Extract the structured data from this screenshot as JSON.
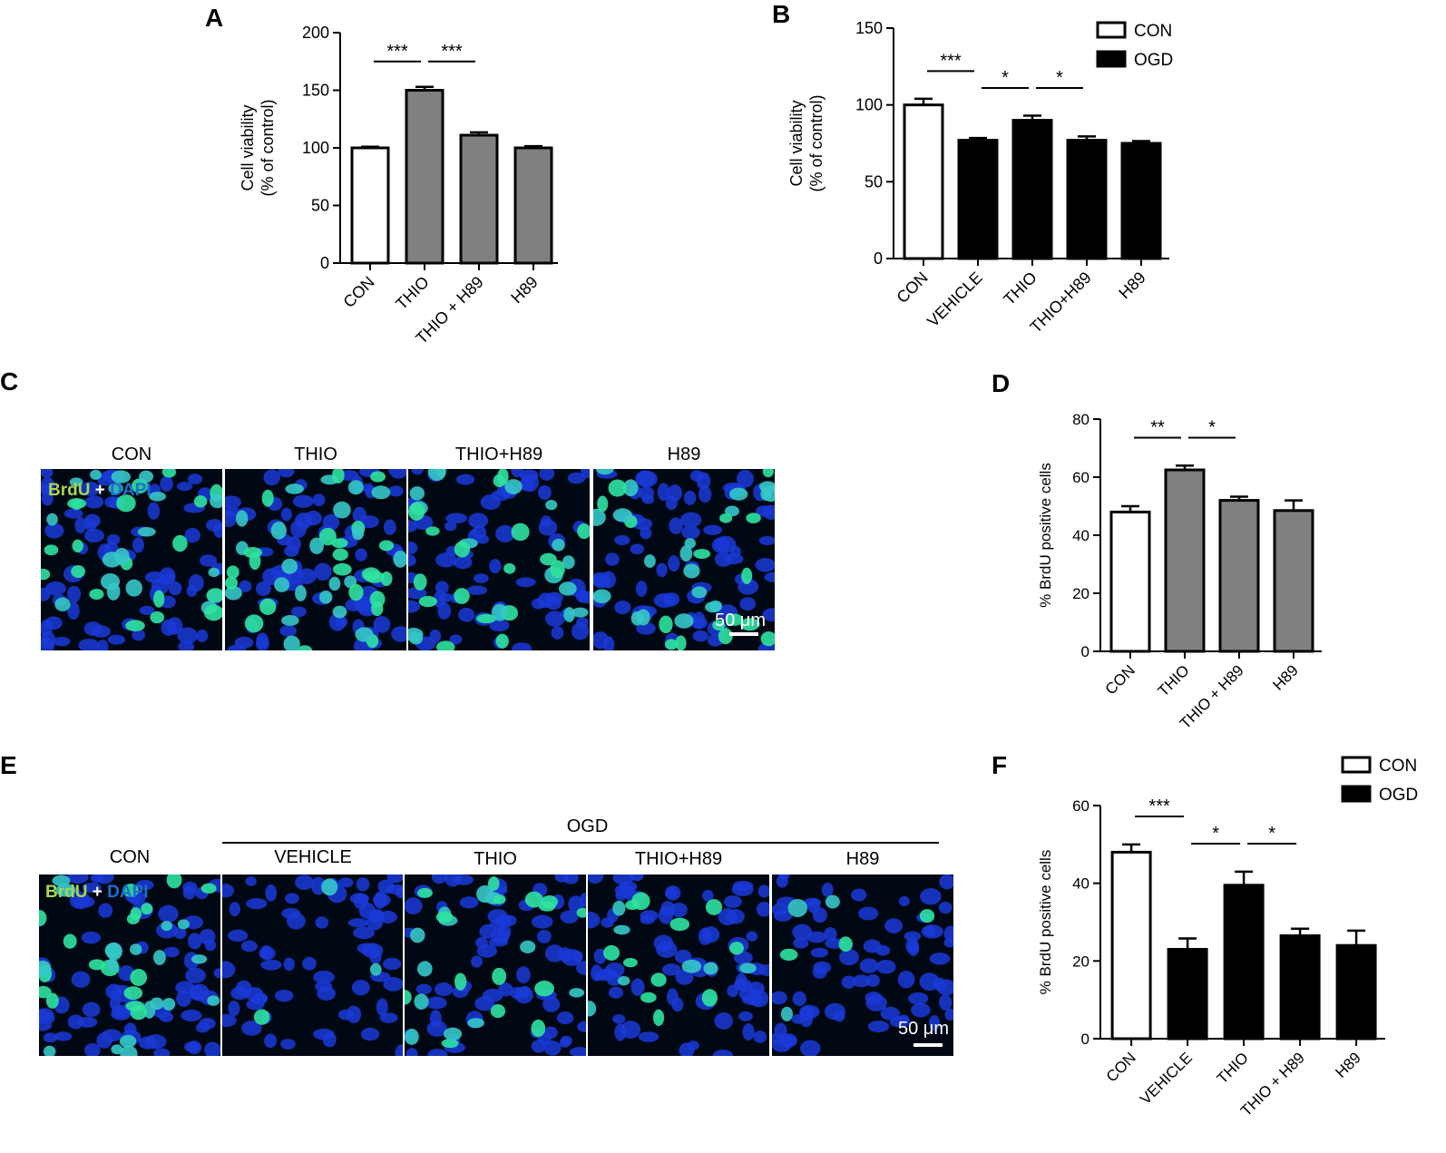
{
  "panels": {
    "A": "A",
    "B": "B",
    "C": "C",
    "D": "D",
    "E": "E",
    "F": "F"
  },
  "colors": {
    "white_bar": "#ffffff",
    "gray_bar": "#808080",
    "black_bar": "#000000",
    "brdu": "#a8d84a",
    "dapi": "#1a6fd0",
    "plus": "#ffffff"
  },
  "chart_data": [
    {
      "panel": "A",
      "type": "bar",
      "categories": [
        "CON",
        "THIO",
        "THIO + H89",
        "H89"
      ],
      "values": [
        100,
        150,
        111,
        100
      ],
      "errors": [
        1,
        3,
        2.5,
        1.5
      ],
      "fills": [
        "white",
        "gray",
        "gray",
        "gray"
      ],
      "ylabel": "Cell viability\n(% of control)",
      "ylim": [
        0,
        200
      ],
      "yticks": [
        0,
        50,
        100,
        150,
        200
      ],
      "significance": [
        {
          "from": 0,
          "to": 1,
          "label": "***"
        },
        {
          "from": 1,
          "to": 2,
          "label": "***"
        }
      ]
    },
    {
      "panel": "B",
      "type": "bar",
      "categories": [
        "CON",
        "VEHICLE",
        "THIO",
        "THIO+H89",
        "H89"
      ],
      "values": [
        100,
        77,
        90,
        77,
        75
      ],
      "errors": [
        4,
        1.5,
        3,
        2.5,
        1.5
      ],
      "fills": [
        "white",
        "black",
        "black",
        "black",
        "black"
      ],
      "ylabel": "Cell viability\n(% of control)",
      "ylim": [
        0,
        150
      ],
      "yticks": [
        0,
        50,
        100,
        150
      ],
      "legend": [
        {
          "name": "CON",
          "fill": "white"
        },
        {
          "name": "OGD",
          "fill": "black"
        }
      ],
      "legend_position": "top-right",
      "significance": [
        {
          "from": 0,
          "to": 1,
          "label": "***"
        },
        {
          "from": 1,
          "to": 2,
          "label": "*"
        },
        {
          "from": 2,
          "to": 3,
          "label": "*"
        }
      ]
    },
    {
      "panel": "D",
      "type": "bar",
      "categories": [
        "CON",
        "THIO",
        "THIO + H89",
        "H89"
      ],
      "values": [
        48,
        62.5,
        52,
        48.5
      ],
      "errors": [
        2,
        1.5,
        1.3,
        3.5
      ],
      "fills": [
        "white",
        "gray",
        "gray",
        "gray"
      ],
      "ylabel": "% BrdU positive cells",
      "ylim": [
        0,
        80
      ],
      "yticks": [
        0,
        20,
        40,
        60,
        80
      ],
      "significance": [
        {
          "from": 0,
          "to": 1,
          "label": "**"
        },
        {
          "from": 1,
          "to": 2,
          "label": "*"
        }
      ]
    },
    {
      "panel": "F",
      "type": "bar",
      "categories": [
        "CON",
        "VEHICLE",
        "THIO",
        "THIO + H89",
        "H89"
      ],
      "values": [
        48,
        23,
        39.5,
        26.5,
        24
      ],
      "errors": [
        2,
        2.8,
        3.5,
        1.8,
        3.8
      ],
      "fills": [
        "white",
        "black",
        "black",
        "black",
        "black"
      ],
      "ylabel": "% BrdU positive cells",
      "ylim": [
        0,
        60
      ],
      "yticks": [
        0,
        20,
        40,
        60
      ],
      "legend": [
        {
          "name": "CON",
          "fill": "white"
        },
        {
          "name": "OGD",
          "fill": "black"
        }
      ],
      "legend_position": "top-right",
      "significance": [
        {
          "from": 0,
          "to": 1,
          "label": "***"
        },
        {
          "from": 1,
          "to": 2,
          "label": "*"
        },
        {
          "from": 2,
          "to": 3,
          "label": "*"
        }
      ]
    }
  ],
  "micrographs_C": {
    "labels": [
      "CON",
      "THIO",
      "THIO+H89",
      "H89"
    ],
    "density": [
      0.6,
      0.75,
      0.55,
      0.6
    ],
    "stain_brdu": "BrdU",
    "stain_plus": "+",
    "stain_dapi": "DAPI",
    "scale": "50 μm"
  },
  "micrographs_E": {
    "group": "OGD",
    "labels": [
      "CON",
      "VEHICLE",
      "THIO",
      "THIO+H89",
      "H89"
    ],
    "density": [
      0.6,
      0.05,
      0.45,
      0.3,
      0.1
    ],
    "stain_brdu": "BrdU",
    "stain_plus": "+",
    "stain_dapi": "DAPI",
    "scale": "50 μm"
  }
}
